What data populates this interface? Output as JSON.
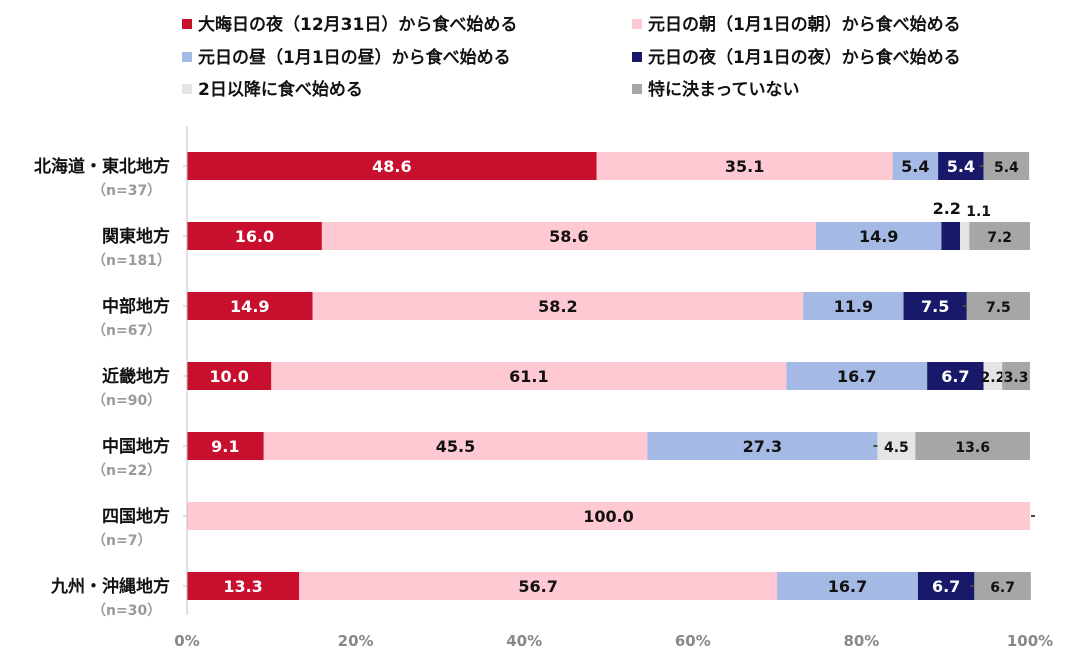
{
  "chart_data": {
    "type": "bar",
    "orientation": "horizontal",
    "stacked": "percent",
    "title": "",
    "xlabel": "",
    "ylabel": "",
    "xlim": [
      0,
      100
    ],
    "x_ticks": [
      "0%",
      "20%",
      "40%",
      "60%",
      "80%",
      "100%"
    ],
    "legend_position": "top",
    "categories": [
      {
        "name": "北海道・東北地方",
        "n": "（n=37）"
      },
      {
        "name": "関東地方",
        "n": "（n=181）"
      },
      {
        "name": "中部地方",
        "n": "（n=67）"
      },
      {
        "name": "近畿地方",
        "n": "（n=90）"
      },
      {
        "name": "中国地方",
        "n": "（n=22）"
      },
      {
        "name": "四国地方",
        "n": "（n=7）"
      },
      {
        "name": "九州・沖縄地方",
        "n": "（n=30）"
      }
    ],
    "series": [
      {
        "name": "大晦日の夜（12月31日）から食べ始める",
        "color": "#c8102e",
        "label_color": "#ffffff",
        "values": [
          48.6,
          16.0,
          14.9,
          10.0,
          9.1,
          0,
          13.3
        ],
        "labels": [
          "48.6",
          "16.0",
          "14.9",
          "10.0",
          "9.1",
          "",
          "13.3"
        ]
      },
      {
        "name": "元日の朝（1月1日の朝）から食べ始める",
        "color": "#ffc9d3",
        "label_color": "#111111",
        "values": [
          35.1,
          58.6,
          58.2,
          61.1,
          45.5,
          100.0,
          56.7
        ],
        "labels": [
          "35.1",
          "58.6",
          "58.2",
          "61.1",
          "45.5",
          "100.0",
          "56.7"
        ]
      },
      {
        "name": "元日の昼（1月1日の昼）から食べ始める",
        "color": "#a4b9e3",
        "label_color": "#111111",
        "values": [
          5.4,
          14.9,
          11.9,
          16.7,
          27.3,
          0,
          16.7
        ],
        "labels": [
          "5.4",
          "14.9",
          "11.9",
          "16.7",
          "27.3",
          "",
          "16.7"
        ]
      },
      {
        "name": "元日の夜（1月1日の夜）から食べ始める",
        "color": "#18196b",
        "label_color": "#ffffff",
        "values": [
          5.4,
          2.2,
          7.5,
          6.7,
          0,
          0,
          6.7
        ],
        "labels": [
          "5.4",
          "2.2",
          "7.5",
          "6.7",
          "",
          "",
          "6.7"
        ]
      },
      {
        "name": "2日以降に食べ始める",
        "color": "#e4e4e4",
        "label_color": "#111111",
        "values": [
          0,
          1.1,
          0,
          2.2,
          4.5,
          0,
          0
        ],
        "labels": [
          "",
          "1.1",
          "",
          "2.2",
          "4.5",
          "",
          ""
        ]
      },
      {
        "name": "特に決まっていない",
        "color": "#a6a6a6",
        "label_color": "#111111",
        "values": [
          5.4,
          7.2,
          7.5,
          3.3,
          13.6,
          0,
          6.7
        ],
        "labels": [
          "5.4",
          "7.2",
          "7.5",
          "3.3",
          "13.6",
          "",
          "6.7"
        ]
      }
    ]
  }
}
